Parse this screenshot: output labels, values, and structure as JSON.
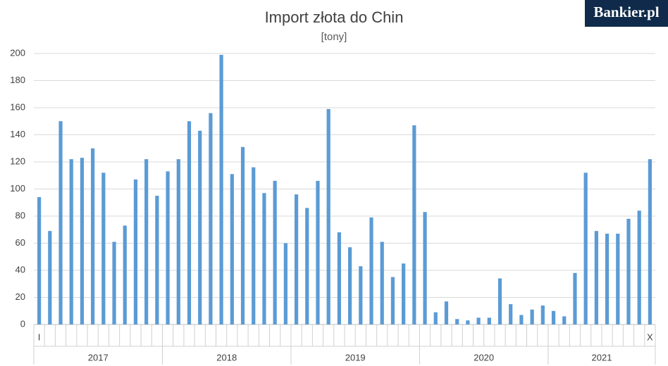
{
  "logo": "Bankier.pl",
  "chart_data": {
    "type": "bar",
    "title": "Import złota do Chin",
    "subtitle": "[tony]",
    "categories": [
      "I",
      null,
      null,
      null,
      null,
      null,
      null,
      null,
      null,
      null,
      null,
      null,
      null,
      null,
      null,
      null,
      null,
      null,
      null,
      null,
      null,
      null,
      null,
      null,
      null,
      null,
      null,
      null,
      null,
      null,
      null,
      null,
      null,
      null,
      null,
      null,
      null,
      null,
      null,
      null,
      null,
      null,
      null,
      null,
      null,
      null,
      null,
      null,
      null,
      null,
      null,
      null,
      null,
      null,
      null,
      null,
      null,
      "X"
    ],
    "groups": [
      "2017",
      "2018",
      "2019",
      "2020",
      "2021"
    ],
    "values": [
      94,
      69,
      150,
      122,
      123,
      130,
      112,
      61,
      73,
      107,
      122,
      95,
      113,
      122,
      150,
      143,
      156,
      199,
      111,
      131,
      116,
      97,
      106,
      60,
      96,
      86,
      106,
      159,
      68,
      57,
      43,
      79,
      61,
      35,
      45,
      147,
      83,
      9,
      17,
      4,
      3,
      5,
      5,
      34,
      15,
      7,
      11,
      14,
      10,
      6,
      38,
      112,
      69,
      67,
      67,
      78,
      84,
      122
    ],
    "color": "#5b9bd5",
    "ylim": [
      0,
      200
    ],
    "yticks": [
      0,
      20,
      40,
      60,
      80,
      100,
      120,
      140,
      160,
      180,
      200
    ],
    "grid": true
  }
}
